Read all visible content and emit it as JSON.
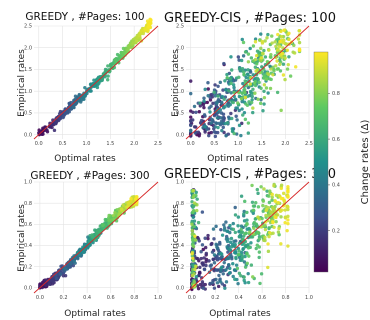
{
  "chart_data": [
    {
      "type": "scatter",
      "title": "GREEDY , #Pages: 100",
      "xlabel": "Optimal rates",
      "ylabel": "Empirical rates",
      "xlim": [
        -0.1,
        2.5
      ],
      "ylim": [
        -0.1,
        2.5
      ],
      "xticks": [
        "0.0",
        "0.5",
        "1.0",
        "1.5",
        "2.0",
        "2.5"
      ],
      "yticks": [
        "0.0",
        "0.5",
        "1.0",
        "1.5",
        "2.0",
        "2.5"
      ],
      "reference_line": "y = x",
      "color_by": "Change rates (Δ)",
      "pattern": "tight band along y = x; low Δ slightly below, high Δ slightly above",
      "grid": true
    },
    {
      "type": "scatter",
      "title": "GREEDY-CIS , #Pages: 100",
      "xlabel": "Optimal rates",
      "ylabel": "Empirical rates",
      "xlim": [
        -0.1,
        2.5
      ],
      "ylim": [
        -0.1,
        2.5
      ],
      "xticks": [
        "0.0",
        "0.5",
        "1.0",
        "1.5",
        "2.0",
        "2.5"
      ],
      "yticks": [
        "0.0",
        "0.5",
        "1.0",
        "1.5",
        "2.0",
        "2.5"
      ],
      "reference_line": "y = x",
      "color_by": "Change rates (Δ)",
      "pattern": "wide spread around y = x",
      "grid": true
    },
    {
      "type": "scatter",
      "title": "GREEDY , #Pages: 300",
      "xlabel": "Optimal rates",
      "ylabel": "Empirical rates",
      "xlim": [
        -0.05,
        1.0
      ],
      "ylim": [
        -0.05,
        1.0
      ],
      "xticks": [
        "0.0",
        "0.2",
        "0.4",
        "0.6",
        "0.8",
        "1.0"
      ],
      "yticks": [
        "0.0",
        "0.2",
        "0.4",
        "0.6",
        "0.8",
        "1.0"
      ],
      "reference_line": "y = x",
      "color_by": "Change rates (Δ)",
      "pattern": "curved band; high Δ above y = x, low Δ below",
      "grid": true
    },
    {
      "type": "scatter",
      "title": "GREEDY-CIS , #Pages: 300",
      "xlabel": "Optimal rates",
      "ylabel": "Empirical rates",
      "xlim": [
        -0.05,
        1.0
      ],
      "ylim": [
        -0.05,
        1.0
      ],
      "xticks": [
        "0.0",
        "0.2",
        "0.4",
        "0.6",
        "0.8",
        "1.0"
      ],
      "yticks": [
        "0.0",
        "0.2",
        "0.4",
        "0.6",
        "0.8",
        "1.0"
      ],
      "reference_line": "y = x",
      "color_by": "Change rates (Δ)",
      "pattern": "very wide spread; many high Δ points near x = 0",
      "grid": true
    }
  ],
  "colorbar": {
    "label": "Change rates (Δ)",
    "ticks": [
      "0.2",
      "0.4",
      "0.6",
      "0.8"
    ],
    "tick_values": [
      0.2,
      0.4,
      0.6,
      0.8
    ],
    "range": [
      0.02,
      0.98
    ],
    "colormap": "viridis",
    "colors": [
      "#440154",
      "#3b528b",
      "#21918c",
      "#5ec962",
      "#fde725"
    ]
  },
  "reference_line_color": "#d62728",
  "grid_color": "#e3e3e3"
}
